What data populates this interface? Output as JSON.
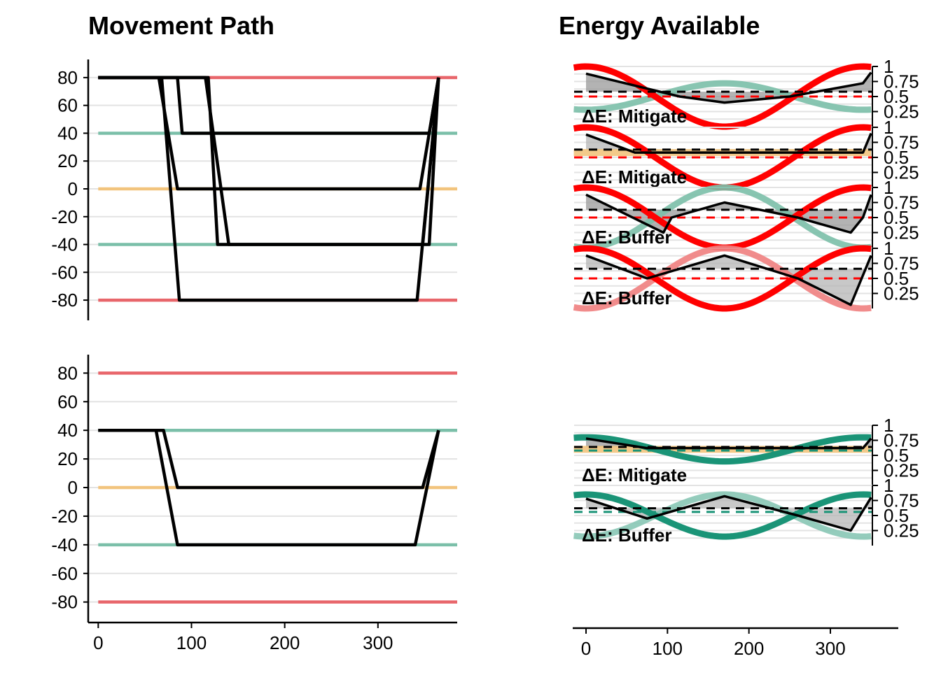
{
  "titles": {
    "left": "Movement Path",
    "right": "Energy Available"
  },
  "colors": {
    "hot": "#e8666b",
    "cool": "#7bbfa9",
    "neutral": "#f2c47d",
    "red": "#ff0000",
    "red_light": "#f08080",
    "teal": "#1a9477",
    "teal_light": "#88c7b5",
    "grey": "#e3e3e3"
  },
  "chart_data": [
    {
      "type": "line",
      "panel": "movement-top",
      "title": "Movement Path",
      "xlim": [
        -10,
        385
      ],
      "ylim": [
        -87,
        88
      ],
      "yticks": [
        80,
        60,
        40,
        20,
        0,
        -20,
        -40,
        -60,
        -80
      ],
      "ytick_labels": [
        "80",
        "60",
        "40",
        "20",
        "0",
        "-20",
        "-40",
        "-60",
        "-80"
      ],
      "grid": true,
      "reference_lines": [
        {
          "y": 80,
          "color": "hot"
        },
        {
          "y": 40,
          "color": "cool"
        },
        {
          "y": 0,
          "color": "neutral"
        },
        {
          "y": -40,
          "color": "cool"
        },
        {
          "y": -80,
          "color": "hot"
        }
      ],
      "series": [
        {
          "x": [
            0,
            85,
            90,
            355,
            365
          ],
          "y": [
            80,
            80,
            40,
            40,
            80
          ]
        },
        {
          "x": [
            0,
            65,
            85,
            345,
            365
          ],
          "y": [
            80,
            80,
            0,
            0,
            80
          ]
        },
        {
          "x": [
            0,
            118,
            128,
            348,
            365
          ],
          "y": [
            80,
            80,
            -40,
            -40,
            80
          ]
        },
        {
          "x": [
            0,
            115,
            140,
            355,
            365
          ],
          "y": [
            80,
            80,
            -40,
            -40,
            80
          ]
        },
        {
          "x": [
            0,
            68,
            87,
            342,
            365
          ],
          "y": [
            80,
            80,
            -80,
            -80,
            80
          ]
        }
      ]
    },
    {
      "type": "line",
      "panel": "movement-bottom",
      "xlim": [
        -10,
        385
      ],
      "ylim": [
        -87,
        88
      ],
      "xticks": [
        0,
        100,
        200,
        300
      ],
      "xtick_labels": [
        "0",
        "100",
        "200",
        "300"
      ],
      "yticks": [
        80,
        60,
        40,
        20,
        0,
        -20,
        -40,
        -60,
        -80
      ],
      "ytick_labels": [
        "80",
        "60",
        "40",
        "20",
        "0",
        "-20",
        "-40",
        "-60",
        "-80"
      ],
      "grid": true,
      "reference_lines": [
        {
          "y": 80,
          "color": "hot"
        },
        {
          "y": 40,
          "color": "cool"
        },
        {
          "y": 0,
          "color": "neutral"
        },
        {
          "y": -40,
          "color": "cool"
        },
        {
          "y": -80,
          "color": "hot"
        }
      ],
      "series": [
        {
          "x": [
            0,
            70,
            85,
            348,
            365
          ],
          "y": [
            40,
            40,
            0,
            0,
            40
          ]
        },
        {
          "x": [
            0,
            62,
            85,
            340,
            365
          ],
          "y": [
            40,
            40,
            -40,
            -40,
            40
          ]
        }
      ]
    },
    {
      "type": "area",
      "panel": "energy",
      "title": "Energy Available",
      "xlim": [
        -15,
        380
      ],
      "xticks": [
        0,
        100,
        200,
        300
      ],
      "xtick_labels": [
        "0",
        "100",
        "200",
        "300"
      ],
      "yticks": [
        1,
        0.75,
        0.5,
        0.25
      ],
      "ytick_labels": [
        "1",
        "0.75",
        "0.5",
        "0.25"
      ],
      "ylim": [
        0,
        1
      ],
      "facets": [
        {
          "label": "ΔE: Mitigate",
          "group": "top",
          "env_color": "red",
          "env_mean": 0.5,
          "env_amp": 0.5,
          "env_phase": 0,
          "other_color": "cool",
          "other_mean": 0.5,
          "other_amp": 0.22,
          "other_phase": 0,
          "other_dir": -1,
          "black": [
            [
              0,
              0.88
            ],
            [
              115,
              0.5
            ],
            [
              170,
              0.4
            ],
            [
              250,
              0.5
            ],
            [
              340,
              0.72
            ],
            [
              350,
              0.9
            ]
          ],
          "dashed_black": 0.58,
          "dashed_red": 0.5
        },
        {
          "label": "ΔE: Mitigate",
          "group": "top",
          "env_color": "red",
          "env_mean": 0.5,
          "env_amp": 0.5,
          "env_phase": 0,
          "other_color": "neutral",
          "other_mean": 0.58,
          "other_amp": 0,
          "other_phase": 0,
          "other_dir": 1,
          "black": [
            [
              0,
              0.88
            ],
            [
              60,
              0.58
            ],
            [
              340,
              0.58
            ],
            [
              350,
              0.9
            ]
          ],
          "dashed_black": 0.63,
          "dashed_red": 0.5
        },
        {
          "label": "ΔE: Buffer",
          "group": "top",
          "env_color": "red",
          "env_mean": 0.5,
          "env_amp": 0.5,
          "env_phase": 0,
          "other_color": "cool",
          "other_mean": 0.5,
          "other_amp": 0.5,
          "other_phase": 0,
          "other_dir": -1,
          "black": [
            [
              0,
              0.88
            ],
            [
              95,
              0.25
            ],
            [
              105,
              0.5
            ],
            [
              170,
              0.75
            ],
            [
              260,
              0.5
            ],
            [
              325,
              0.25
            ],
            [
              340,
              0.5
            ],
            [
              350,
              0.88
            ]
          ],
          "dashed_black": 0.63,
          "dashed_red": 0.5
        },
        {
          "label": "ΔE: Buffer",
          "group": "top",
          "env_color": "red",
          "env_mean": 0.5,
          "env_amp": 0.5,
          "env_phase": 0,
          "other_color": "red_light",
          "other_mean": 0.5,
          "other_amp": 0.5,
          "other_phase": 0,
          "other_dir": -1,
          "black": [
            [
              0,
              0.88
            ],
            [
              75,
              0.5
            ],
            [
              170,
              0.88
            ],
            [
              260,
              0.5
            ],
            [
              325,
              0.06
            ],
            [
              350,
              0.88
            ]
          ],
          "dashed_black": 0.66,
          "dashed_red": 0.5
        },
        {
          "label": "ΔE: Mitigate",
          "group": "bottom",
          "env_color": "teal",
          "env_mean": 0.6,
          "env_amp": 0.2,
          "env_phase": 0,
          "other_color": "neutral",
          "other_mean": 0.6,
          "other_amp": 0,
          "other_phase": 0,
          "other_dir": 1,
          "black": [
            [
              0,
              0.78
            ],
            [
              75,
              0.62
            ],
            [
              340,
              0.62
            ],
            [
              350,
              0.78
            ]
          ],
          "dashed_black": 0.64,
          "dashed_red": 0.58
        },
        {
          "label": "ΔE: Buffer",
          "group": "bottom",
          "env_color": "teal",
          "env_mean": 0.5,
          "env_amp": 0.35,
          "env_phase": 0,
          "other_color": "teal_light",
          "other_mean": 0.5,
          "other_amp": 0.35,
          "other_phase": 0,
          "other_dir": -1,
          "black": [
            [
              0,
              0.78
            ],
            [
              75,
              0.45
            ],
            [
              170,
              0.82
            ],
            [
              260,
              0.5
            ],
            [
              325,
              0.25
            ],
            [
              350,
              0.8
            ]
          ],
          "dashed_black": 0.62,
          "dashed_red": 0.56
        }
      ]
    }
  ]
}
